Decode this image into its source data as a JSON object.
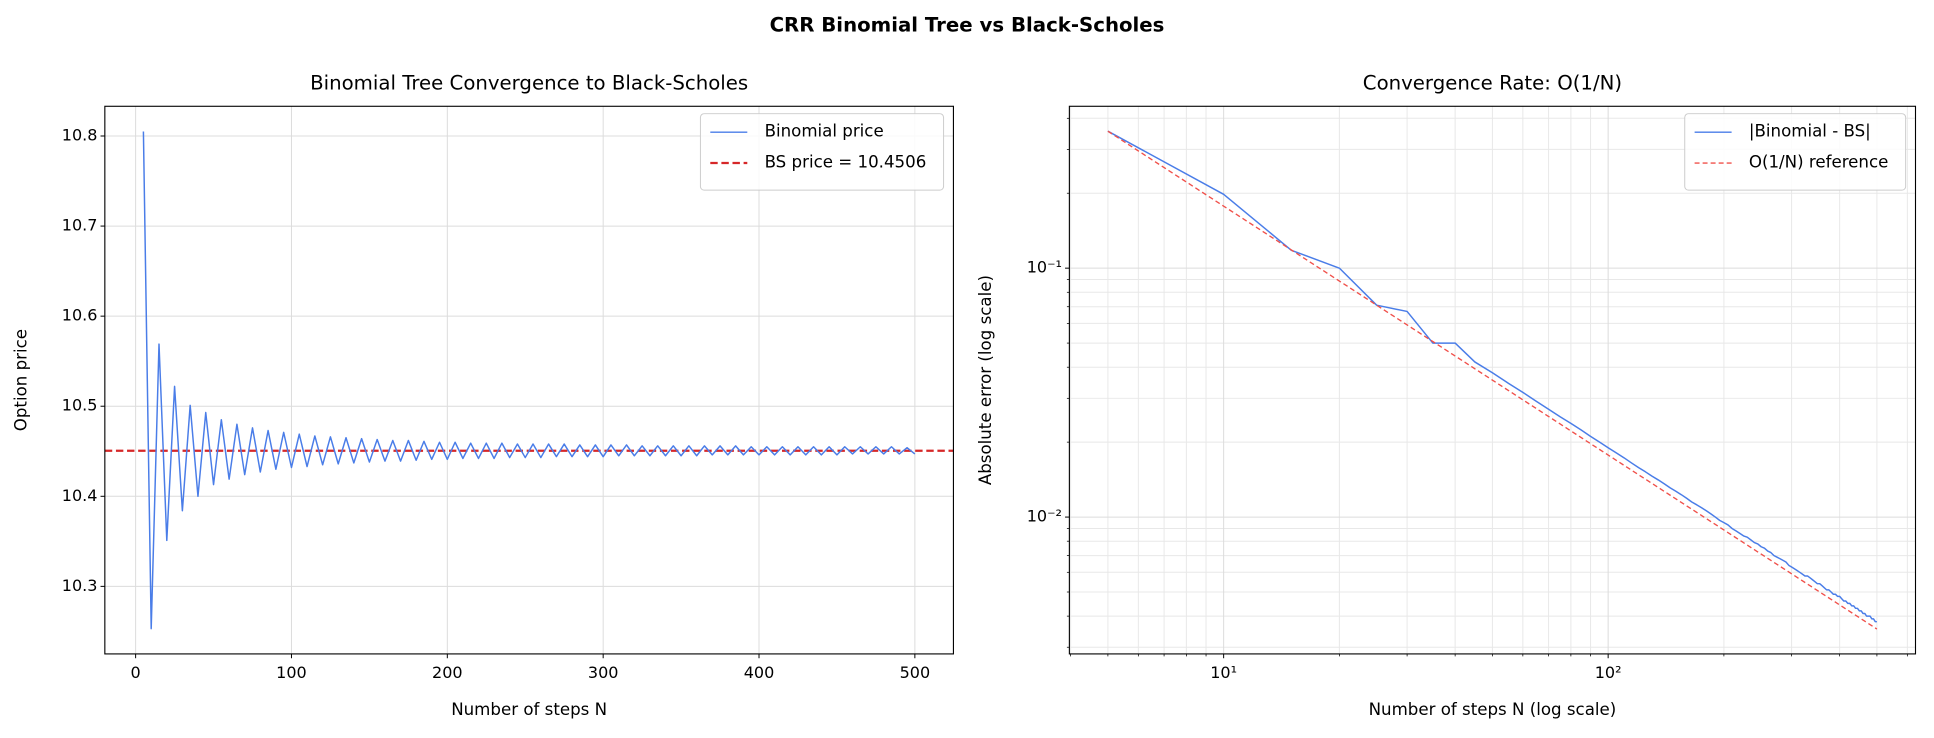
{
  "title": "CRR Binomial Tree vs Black-Scholes",
  "chart_data": [
    {
      "type": "line",
      "title": "Binomial Tree Convergence to Black-Scholes",
      "xlabel": "Number of steps N",
      "ylabel": "Option price",
      "x": [
        5,
        10,
        15,
        20,
        25,
        30,
        35,
        40,
        45,
        50,
        55,
        60,
        65,
        70,
        75,
        80,
        85,
        90,
        95,
        100,
        105,
        110,
        115,
        120,
        125,
        130,
        135,
        140,
        145,
        150,
        155,
        160,
        165,
        170,
        175,
        180,
        185,
        190,
        195,
        200,
        205,
        210,
        215,
        220,
        225,
        230,
        235,
        240,
        245,
        250,
        255,
        260,
        265,
        270,
        275,
        280,
        285,
        290,
        295,
        300,
        305,
        310,
        315,
        320,
        325,
        330,
        335,
        340,
        345,
        350,
        355,
        360,
        365,
        370,
        375,
        380,
        385,
        390,
        395,
        400,
        405,
        410,
        415,
        420,
        425,
        430,
        435,
        440,
        445,
        450,
        455,
        460,
        465,
        470,
        475,
        480,
        485,
        490,
        495,
        500
      ],
      "series": [
        {
          "name": "Binomial price",
          "color": "#4a7de8",
          "values": [
            10.805,
            10.253,
            10.569,
            10.351,
            10.522,
            10.384,
            10.501,
            10.4,
            10.493,
            10.413,
            10.485,
            10.419,
            10.48,
            10.424,
            10.476,
            10.427,
            10.473,
            10.43,
            10.471,
            10.432,
            10.469,
            10.433,
            10.467,
            10.435,
            10.466,
            10.436,
            10.465,
            10.437,
            10.464,
            10.438,
            10.463,
            10.439,
            10.462,
            10.439,
            10.462,
            10.44,
            10.461,
            10.441,
            10.46,
            10.441,
            10.46,
            10.442,
            10.459,
            10.442,
            10.459,
            10.442,
            10.459,
            10.443,
            10.458,
            10.443,
            10.458,
            10.443,
            10.458,
            10.444,
            10.458,
            10.444,
            10.457,
            10.444,
            10.457,
            10.444,
            10.457,
            10.445,
            10.457,
            10.445,
            10.456,
            10.445,
            10.456,
            10.445,
            10.456,
            10.445,
            10.456,
            10.445,
            10.456,
            10.446,
            10.456,
            10.446,
            10.456,
            10.446,
            10.455,
            10.446,
            10.455,
            10.446,
            10.455,
            10.446,
            10.455,
            10.446,
            10.455,
            10.446,
            10.455,
            10.446,
            10.455,
            10.447,
            10.455,
            10.447,
            10.455,
            10.447,
            10.455,
            10.447,
            10.454,
            10.447
          ]
        }
      ],
      "hlines": [
        {
          "name": "BS price = 10.4506",
          "color": "#d62728",
          "value": 10.4506,
          "style": "dashed"
        }
      ],
      "xlim": [
        -19.75,
        524.75
      ],
      "ylim": [
        10.225,
        10.833
      ],
      "xticks": [
        0,
        100,
        200,
        300,
        400,
        500
      ],
      "yticks": [
        10.3,
        10.4,
        10.5,
        10.6,
        10.7,
        10.8
      ],
      "grid": true,
      "legend": "upper right"
    },
    {
      "type": "line",
      "title": "Convergence Rate: O(1/N)",
      "xlabel": "Number of steps N (log scale)",
      "ylabel": "Absolute error (log scale)",
      "xscale": "log",
      "yscale": "log",
      "x": [
        5,
        10,
        15,
        20,
        25,
        30,
        35,
        40,
        45,
        50,
        55,
        60,
        65,
        70,
        75,
        80,
        85,
        90,
        95,
        100,
        105,
        110,
        115,
        120,
        125,
        130,
        135,
        140,
        145,
        150,
        155,
        160,
        165,
        170,
        175,
        180,
        185,
        190,
        195,
        200,
        205,
        210,
        215,
        220,
        225,
        230,
        235,
        240,
        245,
        250,
        255,
        260,
        265,
        270,
        275,
        280,
        285,
        290,
        295,
        300,
        305,
        310,
        315,
        320,
        325,
        330,
        335,
        340,
        345,
        350,
        355,
        360,
        365,
        370,
        375,
        380,
        385,
        390,
        395,
        400,
        405,
        410,
        415,
        420,
        425,
        430,
        435,
        440,
        445,
        450,
        455,
        460,
        465,
        470,
        475,
        480,
        485,
        490,
        495,
        500
      ],
      "series": [
        {
          "name": "|Binomial - BS|",
          "color": "#4a7de8",
          "values": [
            0.355,
            0.198,
            0.118,
            0.1,
            0.071,
            0.067,
            0.05,
            0.05,
            0.042,
            0.038,
            0.0345,
            0.0317,
            0.0292,
            0.0271,
            0.0253,
            0.0238,
            0.0224,
            0.0211,
            0.02,
            0.019,
            0.0181,
            0.0173,
            0.0165,
            0.0158,
            0.0152,
            0.0146,
            0.0141,
            0.0136,
            0.0131,
            0.0127,
            0.0123,
            0.0119,
            0.0115,
            0.0112,
            0.0109,
            0.0106,
            0.0103,
            0.01,
            0.0097,
            0.0095,
            0.0093,
            0.009,
            0.0088,
            0.0086,
            0.0084,
            0.0083,
            0.0081,
            0.0079,
            0.0078,
            0.0076,
            0.0075,
            0.0073,
            0.0072,
            0.007,
            0.0069,
            0.0068,
            0.0067,
            0.0066,
            0.0064,
            0.0063,
            0.0062,
            0.0061,
            0.006,
            0.0059,
            0.0058,
            0.0058,
            0.0057,
            0.0056,
            0.0055,
            0.0054,
            0.0054,
            0.0053,
            0.0052,
            0.0051,
            0.0051,
            0.005,
            0.0049,
            0.0049,
            0.0048,
            0.0048,
            0.0047,
            0.0046,
            0.0046,
            0.0045,
            0.0045,
            0.0044,
            0.0044,
            0.0043,
            0.0043,
            0.0042,
            0.0042,
            0.0041,
            0.0041,
            0.004,
            0.004,
            0.004,
            0.0039,
            0.0039,
            0.0038,
            0.0038
          ]
        },
        {
          "name": "O(1/N) reference",
          "color": "#f0504a",
          "style": "dashed",
          "x": [
            5,
            500
          ],
          "values": [
            0.355,
            0.00355
          ]
        }
      ],
      "xlim": [
        3.97,
        630
      ],
      "ylim": [
        0.00282,
        0.447
      ],
      "xticks": [
        {
          "value": 10,
          "label": "10¹"
        },
        {
          "value": 100,
          "label": "10²"
        }
      ],
      "yticks": [
        {
          "value": 0.01,
          "label": "10⁻²"
        },
        {
          "value": 0.1,
          "label": "10⁻¹"
        }
      ],
      "xminor": [
        4,
        5,
        6,
        7,
        8,
        9,
        20,
        30,
        40,
        50,
        60,
        70,
        80,
        90,
        200,
        300,
        400,
        500,
        600
      ],
      "yminor": [
        0.003,
        0.004,
        0.005,
        0.006,
        0.007,
        0.008,
        0.009,
        0.02,
        0.03,
        0.04,
        0.05,
        0.06,
        0.07,
        0.08,
        0.09,
        0.2,
        0.3,
        0.4
      ],
      "grid": true,
      "legend": "upper right"
    }
  ]
}
